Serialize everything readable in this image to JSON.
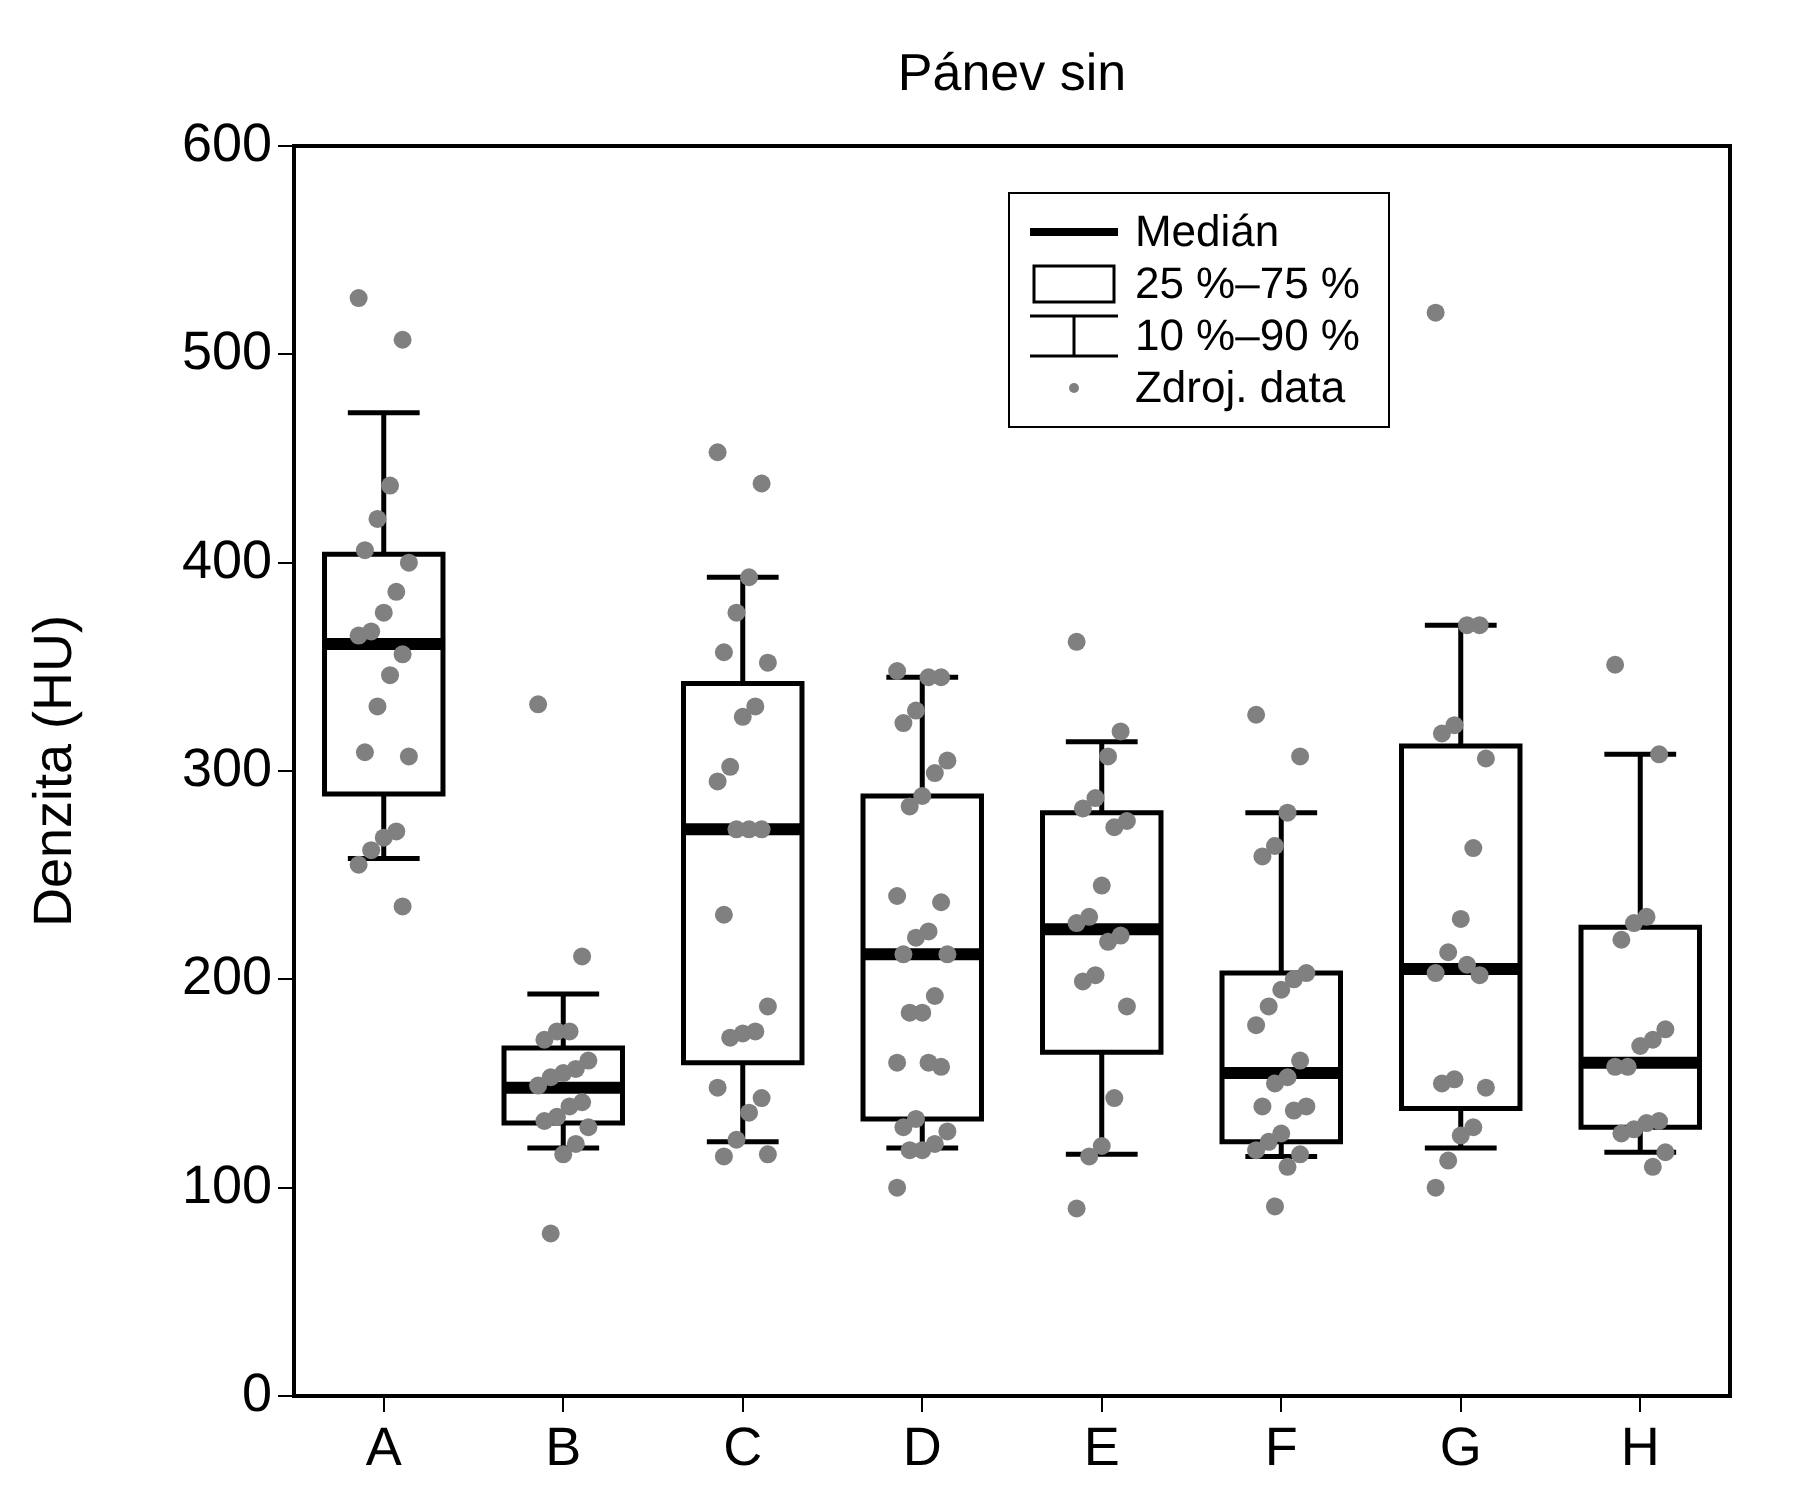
{
  "chart_data": {
    "type": "box",
    "title": "Pánev sin",
    "ylabel": "Denzita (HU)",
    "categories": [
      "A",
      "B",
      "C",
      "D",
      "E",
      "F",
      "G",
      "H"
    ],
    "ylim": [
      0,
      600
    ],
    "yticks": [
      0,
      100,
      200,
      300,
      400,
      500,
      600
    ],
    "legend": "top right",
    "annotations": [
      "Medián",
      "25 %–75 %",
      "10 %–90 %"
    ],
    "series": [
      {
        "type": "box",
        "color": "#000000",
        "boxes": [
          {
            "low": 258,
            "q1": 289,
            "median": 361,
            "q3": 404,
            "high": 472
          },
          {
            "low": 119,
            "q1": 131,
            "median": 148,
            "q3": 167,
            "high": 193
          },
          {
            "low": 122,
            "q1": 160,
            "median": 272,
            "q3": 342,
            "high": 393
          },
          {
            "low": 119,
            "q1": 133,
            "median": 212,
            "q3": 288,
            "high": 345
          },
          {
            "low": 116,
            "q1": 165,
            "median": 224,
            "q3": 280,
            "high": 314
          },
          {
            "low": 115,
            "q1": 122,
            "median": 155,
            "q3": 203,
            "high": 280
          },
          {
            "low": 119,
            "q1": 138,
            "median": 205,
            "q3": 312,
            "high": 370
          },
          {
            "low": 117,
            "q1": 129,
            "median": 160,
            "q3": 225,
            "high": 308
          }
        ]
      },
      {
        "type": "scatter",
        "name": "Zdroj. data",
        "color": "#808080",
        "marker": "circle",
        "x": [
          "A",
          "A",
          "A",
          "A",
          "A",
          "A",
          "A",
          "A",
          "A",
          "A",
          "A",
          "A",
          "A",
          "A",
          "A",
          "A",
          "A",
          "A",
          "A",
          "A",
          "B",
          "B",
          "B",
          "B",
          "B",
          "B",
          "B",
          "B",
          "B",
          "B",
          "B",
          "B",
          "B",
          "B",
          "B",
          "B",
          "B",
          "B",
          "C",
          "C",
          "C",
          "C",
          "C",
          "C",
          "C",
          "C",
          "C",
          "C",
          "C",
          "C",
          "C",
          "C",
          "C",
          "C",
          "C",
          "C",
          "C",
          "C",
          "C",
          "C",
          "C",
          "C",
          "D",
          "D",
          "D",
          "D",
          "D",
          "D",
          "D",
          "D",
          "D",
          "D",
          "D",
          "D",
          "D",
          "D",
          "D",
          "D",
          "D",
          "D",
          "D",
          "D",
          "D",
          "D",
          "D",
          "D",
          "D",
          "D",
          "D",
          "D",
          "E",
          "E",
          "E",
          "E",
          "E",
          "E",
          "E",
          "E",
          "E",
          "E",
          "E",
          "E",
          "E",
          "E",
          "E",
          "E",
          "E",
          "E",
          "E",
          "F",
          "F",
          "F",
          "F",
          "F",
          "F",
          "F",
          "F",
          "F",
          "F",
          "F",
          "F",
          "F",
          "F",
          "F",
          "F",
          "F",
          "F",
          "F",
          "F",
          "F",
          "F",
          "G",
          "G",
          "G",
          "G",
          "G",
          "G",
          "G",
          "G",
          "G",
          "G",
          "G",
          "G",
          "G",
          "G",
          "G",
          "G",
          "G",
          "G",
          "G",
          "H",
          "H",
          "H",
          "H",
          "H",
          "H",
          "H",
          "H",
          "H",
          "H",
          "H",
          "H",
          "H",
          "H",
          "H",
          "H"
        ],
        "values": [
          527,
          507,
          437,
          421,
          406,
          400,
          386,
          376,
          367,
          365,
          356,
          346,
          331,
          309,
          307,
          271,
          268,
          262,
          255,
          235,
          332,
          211,
          175,
          175,
          171,
          161,
          157,
          155,
          153,
          149,
          141,
          139,
          134,
          132,
          129,
          121,
          116,
          78,
          453,
          438,
          393,
          376,
          357,
          352,
          331,
          326,
          302,
          295,
          272,
          272,
          272,
          231,
          187,
          175,
          174,
          172,
          148,
          143,
          136,
          123,
          115,
          116,
          348,
          345,
          345,
          329,
          323,
          305,
          299,
          288,
          283,
          240,
          237,
          223,
          220,
          212,
          212,
          192,
          184,
          184,
          160,
          158,
          160,
          133,
          129,
          127,
          121,
          118,
          118,
          100,
          362,
          319,
          307,
          287,
          282,
          276,
          273,
          245,
          230,
          227,
          221,
          218,
          202,
          199,
          187,
          143,
          120,
          115,
          90,
          327,
          307,
          280,
          264,
          259,
          203,
          200,
          195,
          187,
          178,
          161,
          153,
          150,
          139,
          139,
          137,
          126,
          122,
          118,
          116,
          110,
          91,
          520,
          370,
          370,
          322,
          318,
          306,
          263,
          229,
          213,
          203,
          202,
          207,
          152,
          150,
          148,
          129,
          125,
          113,
          100,
          351,
          308,
          230,
          227,
          219,
          176,
          171,
          168,
          158,
          158,
          132,
          131,
          128,
          126,
          117,
          110
        ]
      }
    ]
  }
}
